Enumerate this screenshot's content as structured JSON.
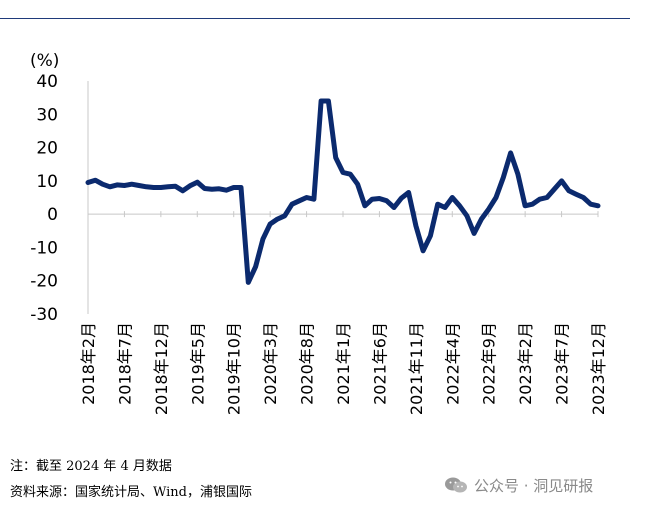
{
  "chart_data": {
    "type": "line",
    "ylabel": "(%)",
    "ylim": [
      -30,
      40
    ],
    "yticks": [
      40,
      30,
      20,
      10,
      0,
      -10,
      -20,
      -30
    ],
    "x_tick_labels": [
      "2018年2月",
      "2018年7月",
      "2018年12月",
      "2019年5月",
      "2019年10月",
      "2020年3月",
      "2020年8月",
      "2021年1月",
      "2021年6月",
      "2021年11月",
      "2022年4月",
      "2022年9月",
      "2023年2月",
      "2023年7月",
      "2023年12月"
    ],
    "x_tick_interval_months": 5,
    "grid": false,
    "legend": "none",
    "color": "#0b2a6e",
    "series": [
      {
        "values": [
          9.5,
          10.2,
          9.0,
          8.2,
          8.8,
          8.6,
          9.0,
          8.6,
          8.2,
          8.0,
          8.0,
          8.2,
          8.4,
          7.0,
          8.5,
          9.6,
          7.7,
          7.5,
          7.6,
          7.2,
          8.0,
          8.0,
          -20.5,
          -15.8,
          -7.5,
          -3.0,
          -1.5,
          -0.5,
          3.0,
          4.0,
          5.0,
          4.5,
          34.0,
          34.0,
          17.0,
          12.5,
          12.0,
          9.0,
          2.5,
          4.5,
          4.7,
          4.0,
          2.0,
          4.8,
          6.5,
          -3.5,
          -11.0,
          -6.5,
          3.0,
          2.0,
          5.0,
          2.5,
          -0.5,
          -5.8,
          -1.5,
          1.5,
          5.0,
          11.0,
          18.4,
          12.0,
          2.5,
          3.0,
          4.5,
          5.0,
          7.5,
          10.0,
          7.0,
          6.0,
          5.0,
          3.0,
          2.5
        ]
      }
    ]
  },
  "notes": {
    "line1": "注：截至 2024 年 4 月数据",
    "line2": "资料来源：国家统计局、Wind，浦银国际"
  },
  "watermark": {
    "icon": "wechat-icon",
    "text": "公众号 · 洞见研报"
  }
}
